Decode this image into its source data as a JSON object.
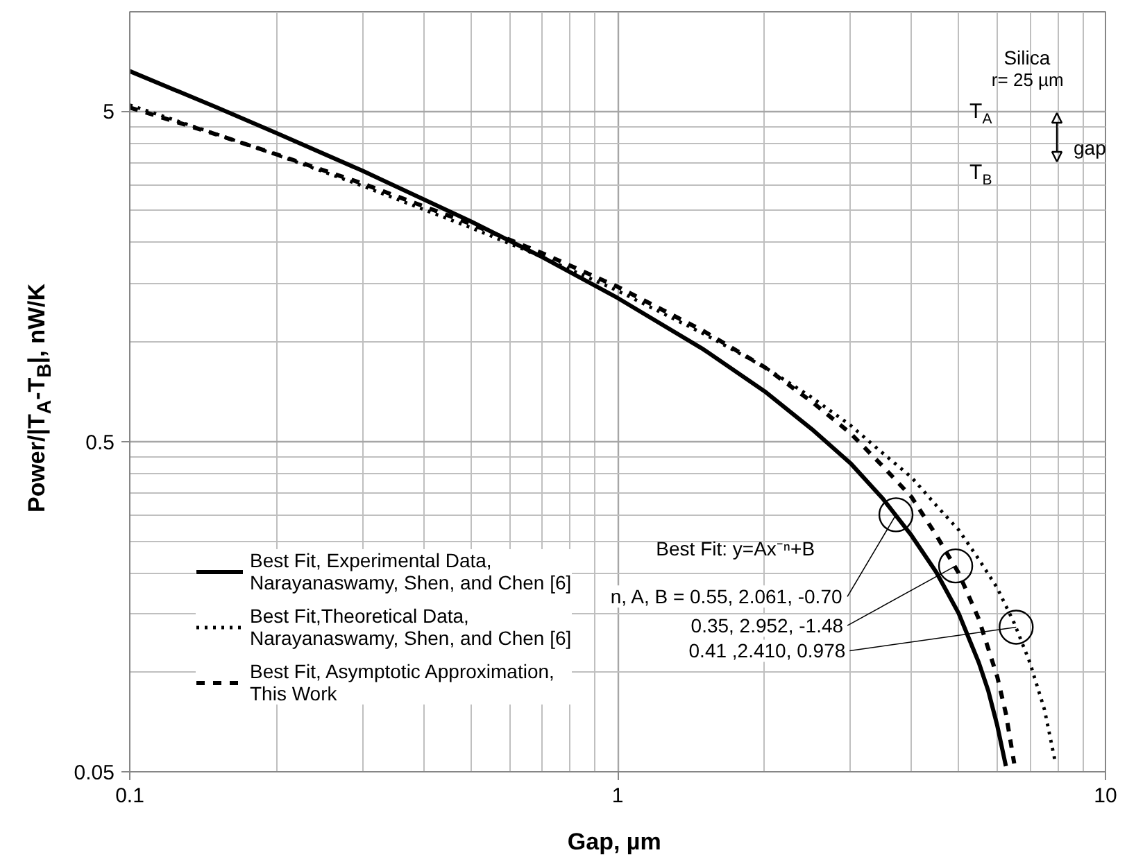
{
  "chart_data": {
    "type": "line",
    "xlabel": "Gap,  µm",
    "ylabel": "Power/|T$_{A}$-T$_{B}$|,  nW/K",
    "log": "xy",
    "xlim": [
      0.1,
      10
    ],
    "ylim": [
      0.05,
      10
    ],
    "xticks": [
      0.1,
      1,
      10
    ],
    "yticks": [
      0.05,
      0.5,
      5
    ],
    "grid": true,
    "legend": "bottom left",
    "series": [
      {
        "name": "Best Fit, Experimental Data, Narayanaswamy, Shen, and Chen [6]",
        "color": "#000000",
        "line_style": "solid",
        "x": [
          0.1,
          0.15,
          0.2,
          0.3,
          0.5,
          0.7,
          1,
          1.5,
          2,
          2.5,
          3,
          3.5,
          4,
          4.5,
          5,
          5.5,
          5.75,
          6,
          6.25
        ],
        "values": [
          6.61,
          5.15,
          4.29,
          3.3,
          2.32,
          1.81,
          1.36,
          0.95,
          0.71,
          0.545,
          0.43,
          0.335,
          0.26,
          0.201,
          0.151,
          0.107,
          0.088,
          0.069,
          0.052
        ]
      },
      {
        "name": "Best Fit,Theoretical Data, Narayanaswamy, Shen, and Chen [6]",
        "color": "#000000",
        "line_style": "dotted",
        "x": [
          0.1,
          0.15,
          0.2,
          0.3,
          0.5,
          0.7,
          1,
          1.5,
          2,
          2.5,
          3,
          3.5,
          4,
          4.5,
          5,
          5.5,
          6,
          6.5,
          7,
          7.5,
          7.9
        ],
        "values": [
          5.22,
          4.27,
          3.69,
          2.97,
          2.22,
          1.81,
          1.43,
          1.06,
          0.84,
          0.68,
          0.56,
          0.46,
          0.39,
          0.32,
          0.27,
          0.22,
          0.18,
          0.141,
          0.107,
          0.077,
          0.053
        ]
      },
      {
        "name": "Best Fit, Asymptotic Approximation, This Work",
        "color": "#000000",
        "line_style": "dashed",
        "x": [
          0.1,
          0.15,
          0.2,
          0.3,
          0.5,
          0.7,
          1,
          1.5,
          2,
          2.5,
          3,
          3.5,
          4,
          4.5,
          5,
          5.5,
          6,
          6.25,
          6.5
        ],
        "values": [
          5.13,
          4.26,
          3.7,
          3.02,
          2.28,
          1.86,
          1.47,
          1.08,
          0.84,
          0.66,
          0.53,
          0.42,
          0.34,
          0.26,
          0.2,
          0.145,
          0.097,
          0.075,
          0.053
        ]
      }
    ],
    "annotations": [
      "Best Fit: y=Ax⁻ⁿ+B",
      {
        "text": "n, A, B = 0.55, 2.061, -0.70",
        "x": 3.72,
        "y": 0.3
      },
      {
        "text": "0.35, 2.952, -1.48",
        "x": 4.93,
        "y": 0.21
      },
      {
        "text": "0.41 ,2.410, 0.978",
        "x": 6.56,
        "y": 0.137
      },
      "Silica",
      "r= 25 µm",
      "T$_{A}$",
      "T$_{B}$",
      "gap"
    ]
  }
}
